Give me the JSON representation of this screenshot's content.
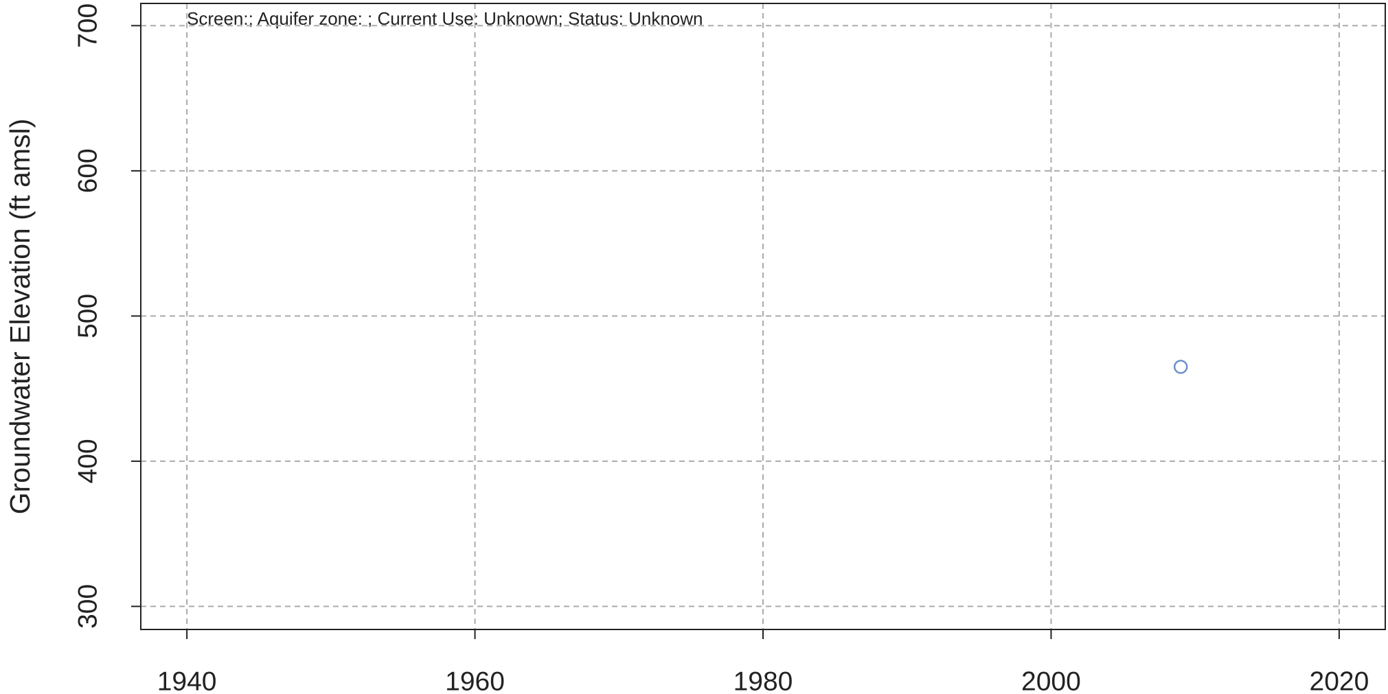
{
  "chart_data": {
    "type": "scatter",
    "annotation": "Screen:; Aquifer zone: ; Current Use: Unknown; Status: Unknown",
    "ylabel": "Groundwater Elevation (ft amsl)",
    "xlim": [
      1936.8,
      2023.2
    ],
    "xticks": [
      1940,
      1960,
      1980,
      2000,
      2020
    ],
    "ylim": [
      284.1,
      715.3
    ],
    "yticks": [
      300,
      400,
      500,
      600,
      700
    ],
    "grid": true,
    "series": [
      {
        "color": "#6b8fcc",
        "x": [
          2009
        ],
        "values": [
          465
        ]
      }
    ]
  }
}
